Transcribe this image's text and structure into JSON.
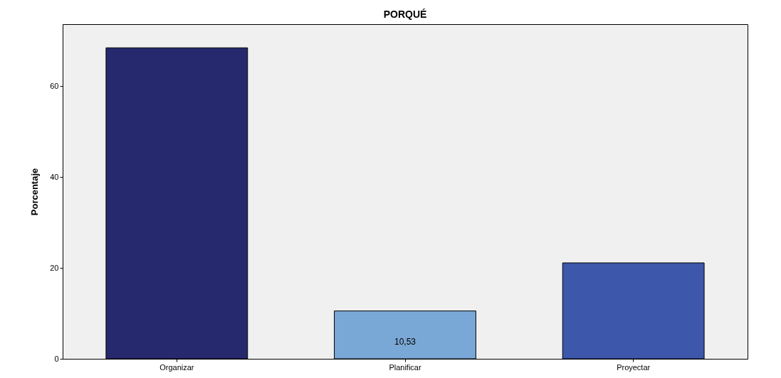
{
  "chart_data": {
    "type": "bar",
    "title": "PORQUÉ",
    "ylabel": "Porcentaje",
    "categories": [
      "Organizar",
      "Planificar",
      "Proyectar"
    ],
    "values": [
      68.4,
      10.53,
      21.1
    ],
    "colors": [
      "#26296e",
      "#7aa8d6",
      "#3d57aa"
    ],
    "value_labels": [
      null,
      "10,53",
      null
    ],
    "ylim": [
      0,
      73.6
    ],
    "yticks": [
      0,
      20,
      40,
      60
    ],
    "grid": false
  }
}
